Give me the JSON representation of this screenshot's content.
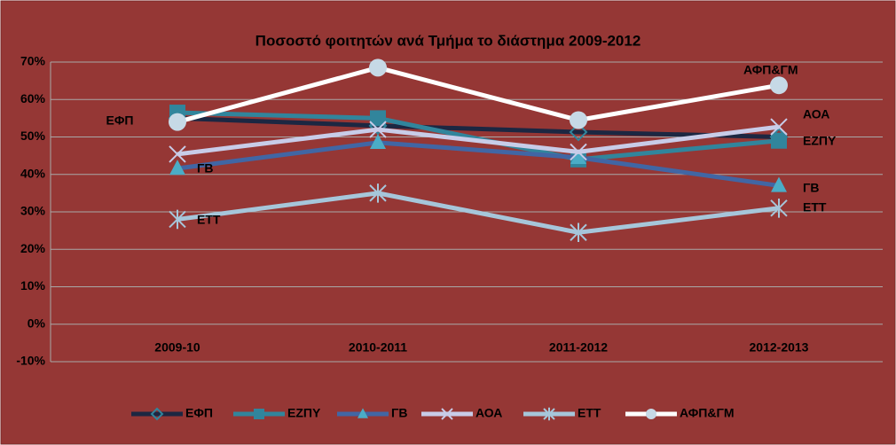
{
  "chart_data": {
    "type": "line",
    "title": "Ποσοστό φοιτητών ανά Τμήμα το διάστημα 2009-2012",
    "categories": [
      "2009-10",
      "2010-2011",
      "2011-2012",
      "2012-2013"
    ],
    "series": [
      {
        "name": "ΕΦΠ",
        "color": "#1c2742",
        "marker": "diamond",
        "values": [
          55,
          53,
          51.3,
          50
        ]
      },
      {
        "name": "ΕΖΠΥ",
        "color": "#31859c",
        "marker": "square",
        "values": [
          56.5,
          55,
          44,
          49
        ]
      },
      {
        "name": "ΓΒ",
        "color": "#4166a4",
        "marker": "triangle",
        "values": [
          41.6,
          48.5,
          44.5,
          37
        ]
      },
      {
        "name": "ΑΟΑ",
        "color": "#c8cce8",
        "marker": "x",
        "values": [
          45.4,
          52,
          46,
          52.7
        ]
      },
      {
        "name": "ΕΤΤ",
        "color": "#a6c6da",
        "marker": "star",
        "values": [
          28,
          35,
          24.5,
          31
        ]
      },
      {
        "name": "ΑΦΠ&ΓΜ",
        "color": "#ffffff",
        "marker": "circle",
        "values": [
          54,
          68.5,
          54.5,
          63.8
        ]
      }
    ],
    "annotations": [
      "ΕΦΠ",
      "ΓΒ",
      "ΕΤΤ",
      "ΑΦΠ&ΓΜ",
      "ΑΟΑ",
      "ΕΖΠΥ",
      "ΓΒ",
      "ΕΤΤ"
    ],
    "ylim": [
      -10,
      70
    ],
    "yticks": [
      {
        "value": -10,
        "label": "-10%"
      },
      {
        "value": 0,
        "label": "0%"
      },
      {
        "value": 10,
        "label": "10%"
      },
      {
        "value": 20,
        "label": "20%"
      },
      {
        "value": 30,
        "label": "30%"
      },
      {
        "value": 40,
        "label": "40%"
      },
      {
        "value": 50,
        "label": "50%"
      },
      {
        "value": 60,
        "label": "60%"
      },
      {
        "value": 70,
        "label": "70%"
      }
    ],
    "grid": true,
    "legend": "bottom"
  }
}
